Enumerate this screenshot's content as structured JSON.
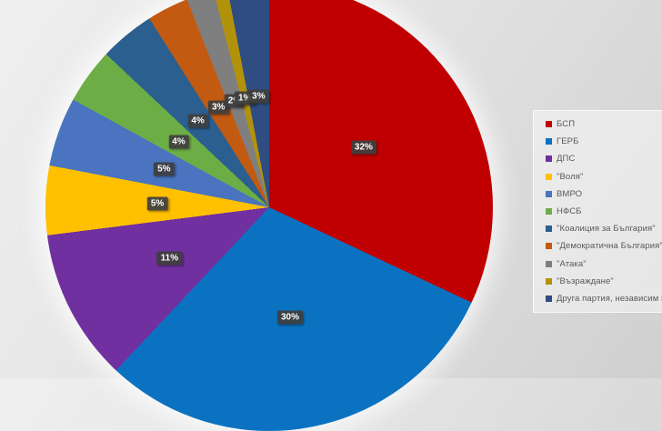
{
  "chart_data": {
    "type": "pie",
    "title": "",
    "legend_position": "right",
    "start_angle_deg": 0,
    "grid": false,
    "slices": [
      {
        "label": "БСП",
        "value": 32,
        "pct_label": "32%",
        "color": "#C00000"
      },
      {
        "label": "ГЕРБ",
        "value": 30,
        "pct_label": "30%",
        "color": "#0B72C2"
      },
      {
        "label": "ДПС",
        "value": 11,
        "pct_label": "11%",
        "color": "#7030A0"
      },
      {
        "label": "\"Воля\"",
        "value": 5,
        "pct_label": "5%",
        "color": "#FFC000"
      },
      {
        "label": "ВМРО",
        "value": 5,
        "pct_label": "5%",
        "color": "#4A74C0"
      },
      {
        "label": "НФСБ",
        "value": 4,
        "pct_label": "4%",
        "color": "#6CAE45"
      },
      {
        "label": "\"Коалиция за България\"",
        "value": 4,
        "pct_label": "4%",
        "color": "#2A5F8F"
      },
      {
        "label": "\"Демократична България\"",
        "value": 3,
        "pct_label": "3%",
        "color": "#C35A11"
      },
      {
        "label": "\"Атака\"",
        "value": 2,
        "pct_label": "2%",
        "color": "#7F7F7F"
      },
      {
        "label": "\"Възраждане\"",
        "value": 1,
        "pct_label": "1%",
        "color": "#B3920B"
      },
      {
        "label": "Друга партия, независим ка",
        "value": 3,
        "pct_label": "3%",
        "color": "#2F4D80"
      }
    ]
  }
}
